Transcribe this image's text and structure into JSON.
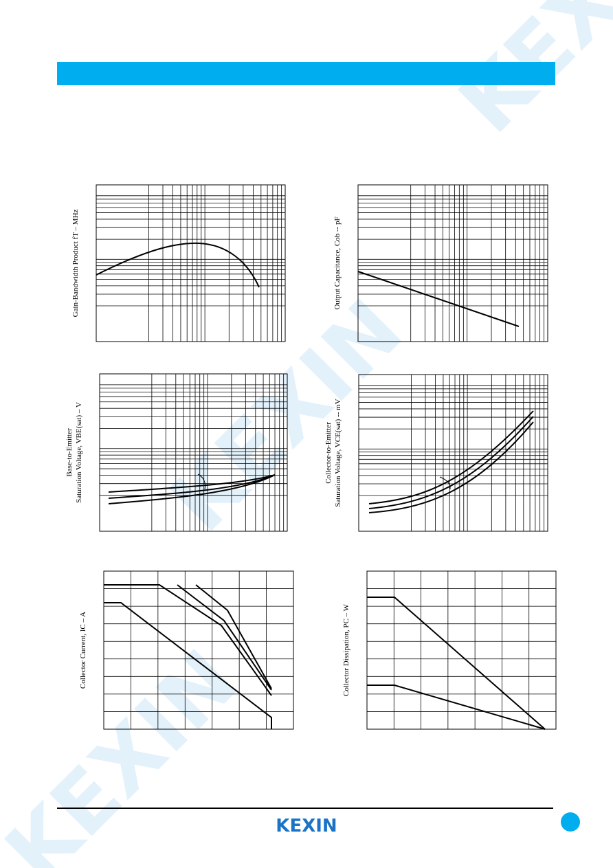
{
  "watermark": "KEXIN",
  "graphs": [
    {
      "y_label": [
        "Gain-Bandwidth Product  fT  –  MHz"
      ]
    },
    {
      "y_label": [
        "Output Capacitance,  Cob  --  pF"
      ]
    },
    {
      "y_label": [
        "Base-to-Emitter",
        "Saturation Voltage, VBE(sat)  –  V"
      ]
    },
    {
      "y_label": [
        "Collector-to-Emitter",
        "Saturation Voltage, VCE(sat)  --  mV"
      ]
    },
    {
      "y_label": [
        "Collector Current, IC  –  A"
      ]
    },
    {
      "y_label": [
        "Collector Dissipation, PC  –  W"
      ]
    }
  ],
  "footer": {
    "logo": "KEXIN"
  }
}
